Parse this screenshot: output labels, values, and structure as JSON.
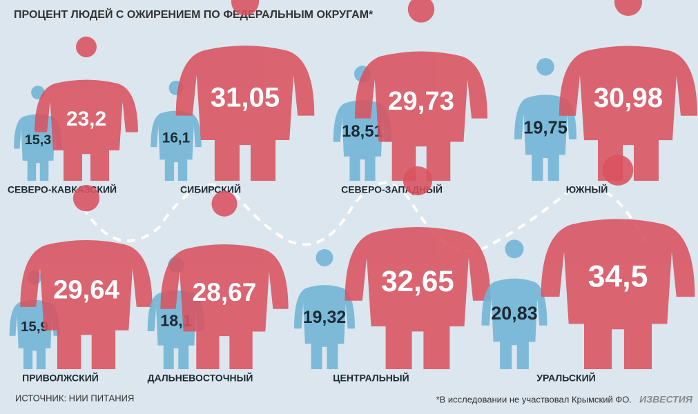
{
  "chart_data": {
    "type": "pictogram",
    "title": "ПРОЦЕНТ ЛЮДЕЙ С ОЖИРЕНИЕМ ПО ФЕДЕРАЛЬНЫМ ОКРУГАМ*",
    "categories": [
      "СЕВЕРО-КАВКАЗСКИЙ",
      "СИБИРСКИЙ",
      "СЕВЕРО-ЗАПАДНЫЙ",
      "ЮЖНЫЙ",
      "ПРИВОЛЖСКИЙ",
      "ДАЛЬНЕВОСТОЧНЫЙ",
      "ЦЕНТРАЛЬНЫЙ",
      "УРАЛЬСКИЙ"
    ],
    "series": [
      {
        "color": "#70b4d6",
        "values": [
          15.3,
          16.1,
          18.51,
          19.75,
          15.9,
          18.1,
          19.32,
          20.83
        ],
        "value_labels": [
          "15,3",
          "16,1",
          "18,51",
          "19,75",
          "15,9",
          "18,1",
          "19,32",
          "20,83"
        ]
      },
      {
        "color": "#d9525f",
        "values": [
          23.2,
          31.05,
          29.73,
          30.98,
          29.64,
          28.67,
          32.65,
          34.5
        ],
        "value_labels": [
          "23,2",
          "31,05",
          "29,73",
          "30,98",
          "29,64",
          "28,67",
          "32,65",
          "34,5"
        ]
      }
    ],
    "source": "ИСТОЧНИК: НИИ ПИТАНИЯ",
    "footnote": "*В исследовании не участвовал Крымский ФО.",
    "logo": "ИЗВЕСТИЯ"
  }
}
